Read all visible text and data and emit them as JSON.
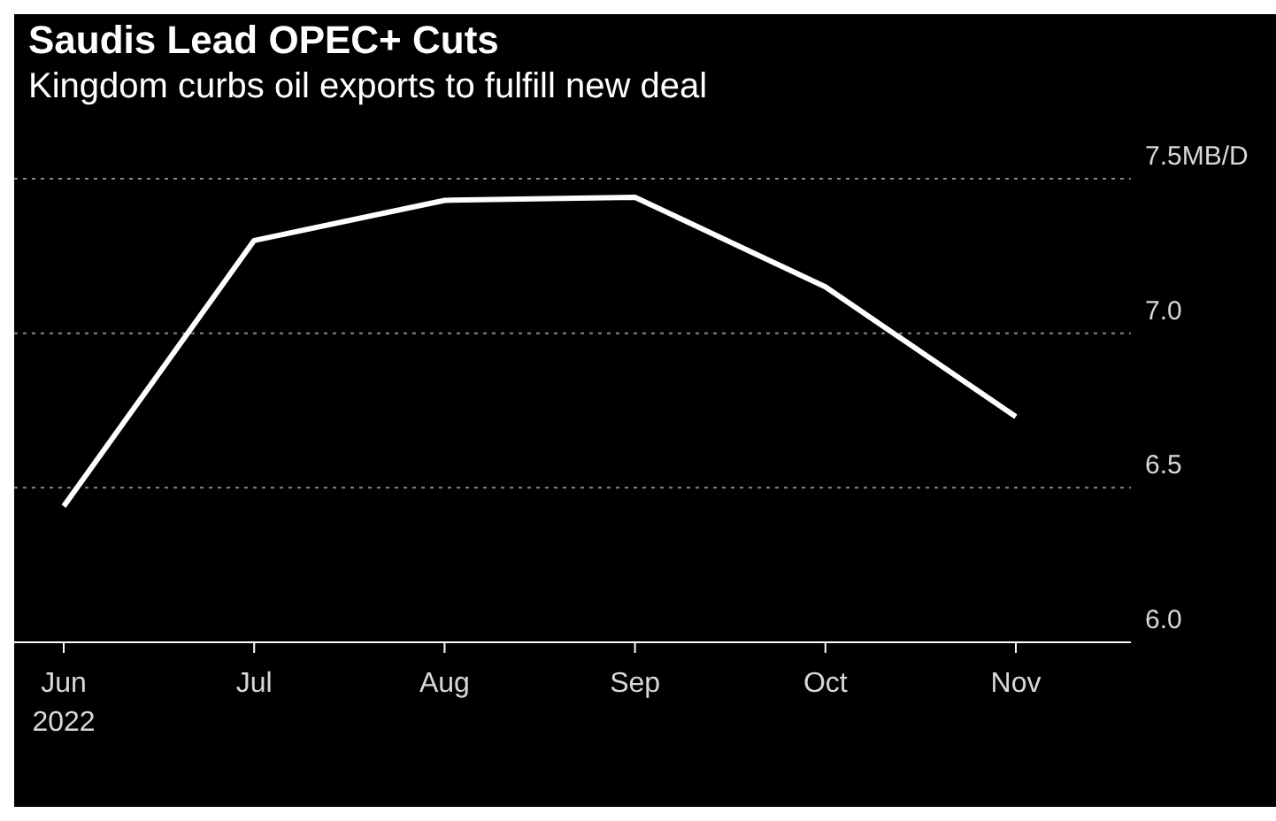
{
  "chart_data": {
    "type": "line",
    "title": "Saudis Lead OPEC+ Cuts",
    "subtitle": "Kingdom curbs oil exports to fulfill new deal",
    "categories": [
      "Jun 2022",
      "Jul",
      "Aug",
      "Sep",
      "Oct",
      "Nov"
    ],
    "series": [
      {
        "color": "#ffffff",
        "values": [
          6.44,
          7.3,
          7.43,
          7.44,
          7.15,
          6.73
        ]
      }
    ],
    "ylim": [
      6.0,
      7.5
    ],
    "yticks": [
      {
        "value": 6.0,
        "label": "6.0"
      },
      {
        "value": 6.5,
        "label": "6.5"
      },
      {
        "value": 7.0,
        "label": "7.0"
      },
      {
        "value": 7.5,
        "label": "7.5MB/D"
      }
    ],
    "grid": "y",
    "marker": "none",
    "line_style": "solid",
    "legend": false
  }
}
